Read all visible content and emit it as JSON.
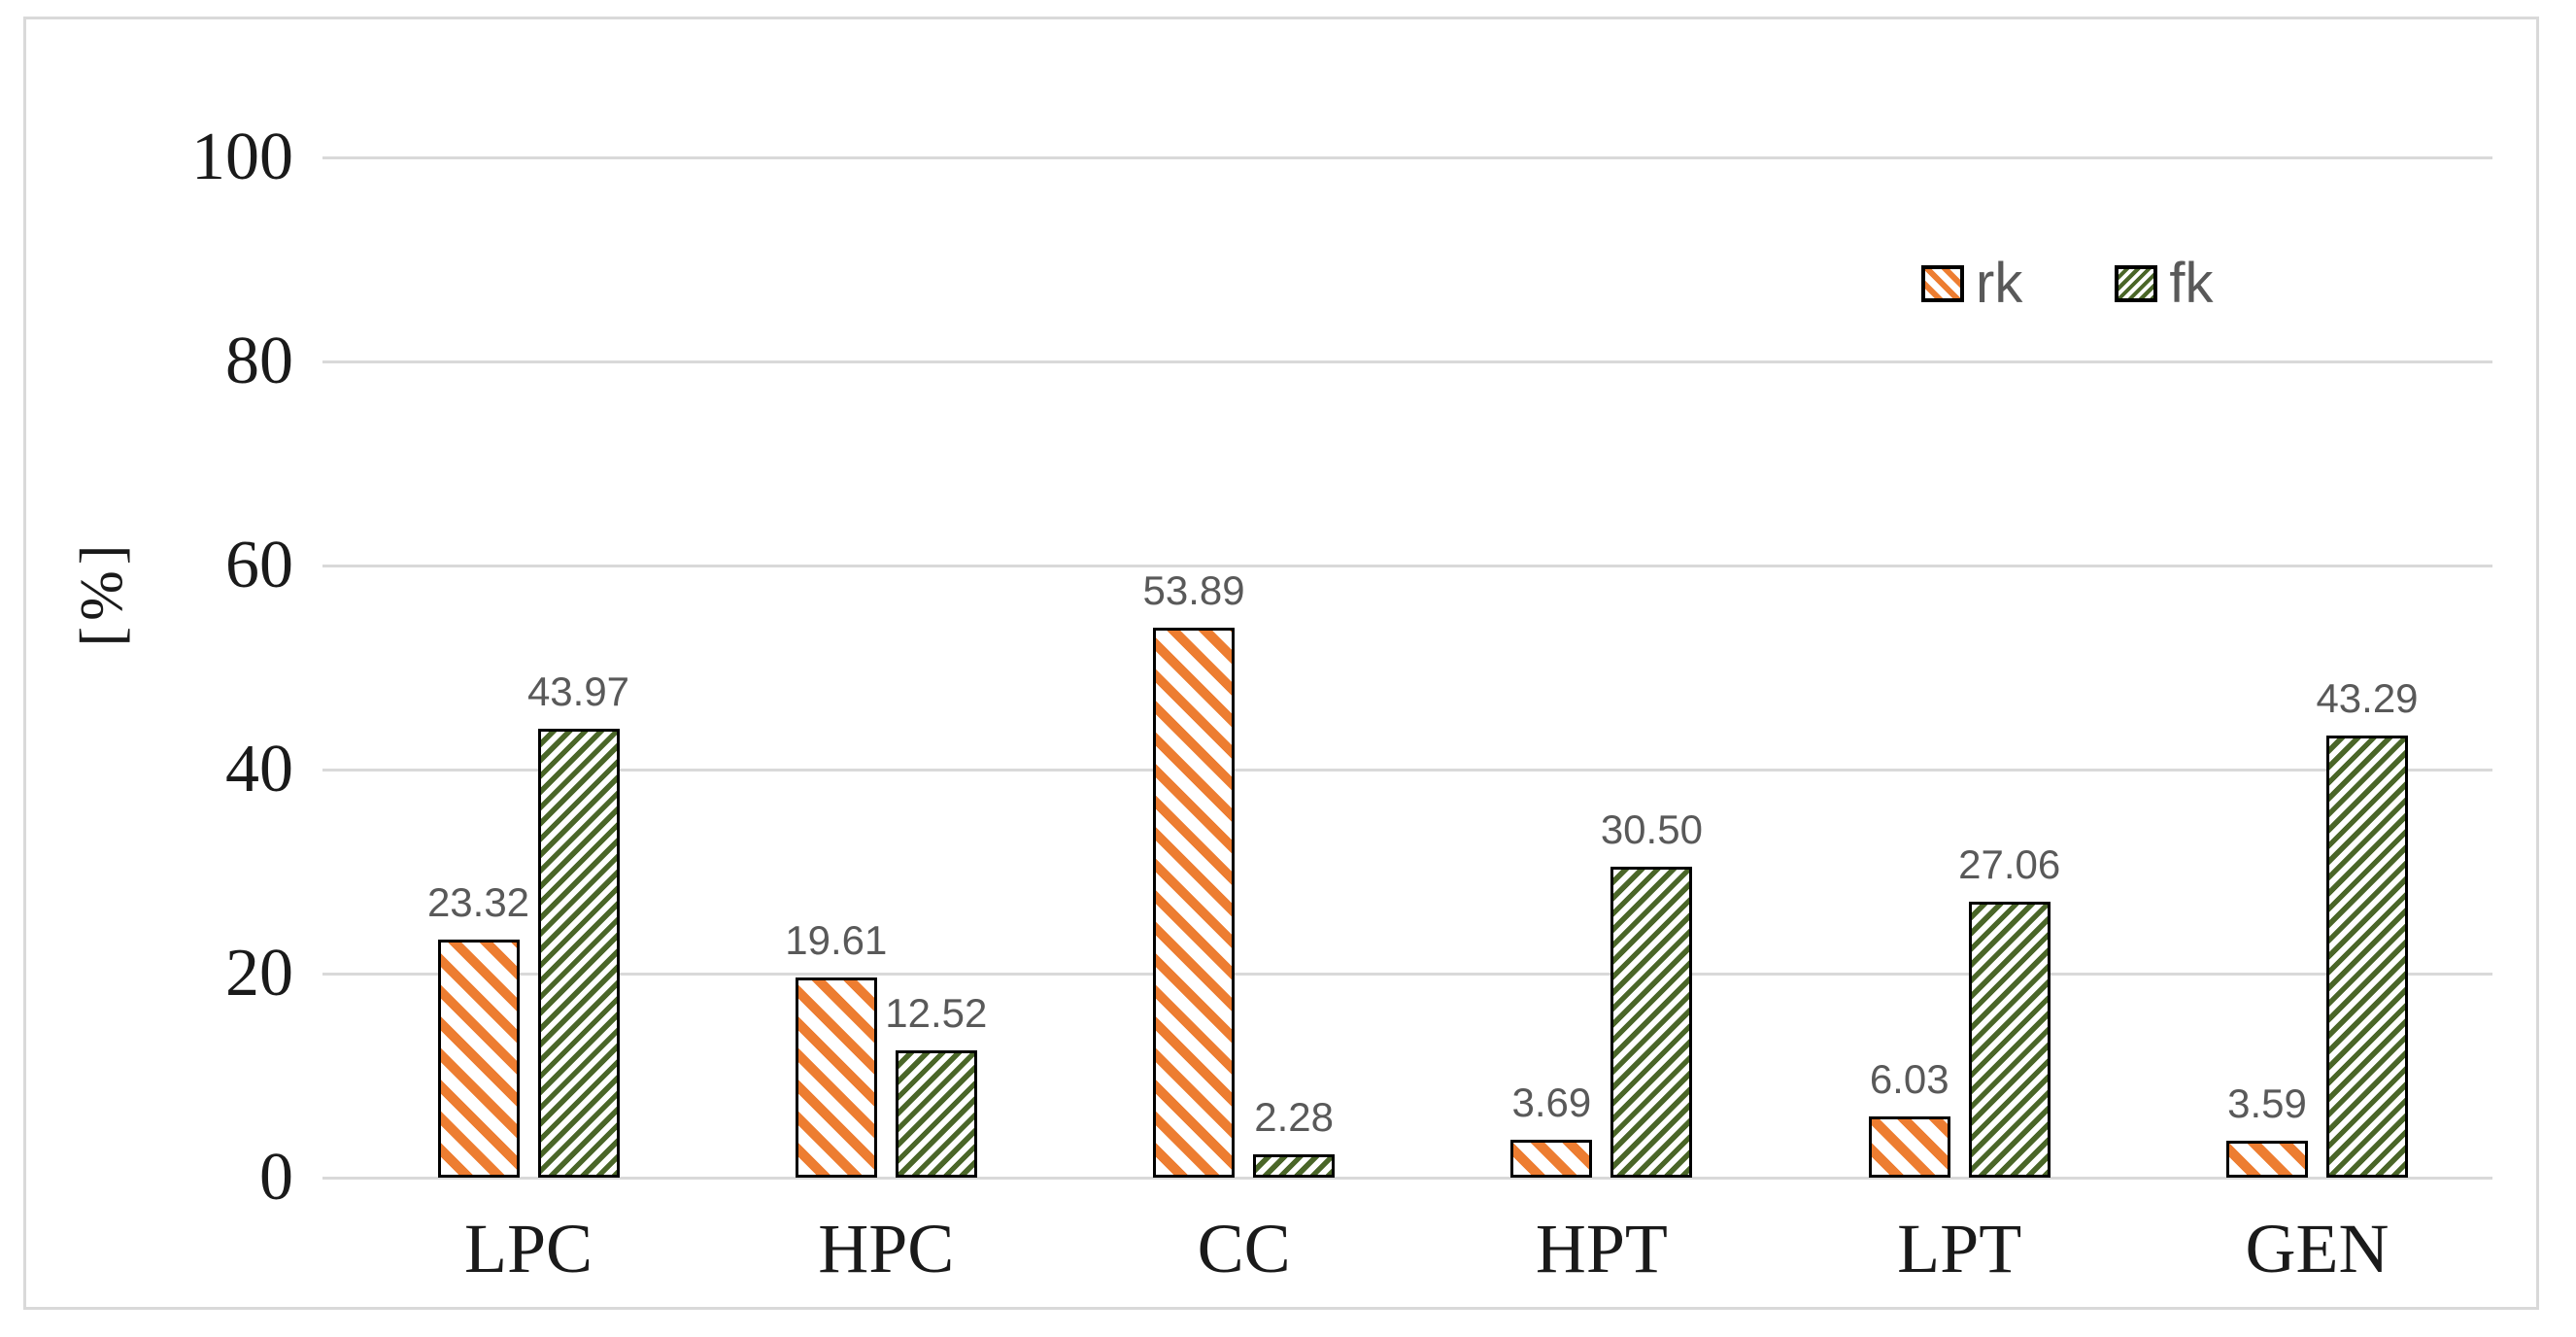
{
  "chart_data": {
    "type": "bar",
    "title": "",
    "categories": [
      "LPC",
      "HPC",
      "CC",
      "HPT",
      "LPT",
      "GEN"
    ],
    "series": [
      {
        "name": "rk",
        "values": [
          23.32,
          19.61,
          53.89,
          3.69,
          6.03,
          3.59
        ],
        "labels": [
          "23.32",
          "19.61",
          "53.89",
          "3.69",
          "6.03",
          "3.59"
        ],
        "color": "#ED7D31",
        "hatch": "wide-downward-diagonal"
      },
      {
        "name": "fk",
        "values": [
          43.97,
          12.52,
          2.28,
          30.5,
          27.06,
          43.29
        ],
        "labels": [
          "43.97",
          "12.52",
          "2.28",
          "30.50",
          "27.06",
          "43.29"
        ],
        "color": "#4A6628",
        "hatch": "upward-diagonal"
      }
    ],
    "xlabel": "",
    "ylabel": "[%]",
    "ylim": [
      0,
      100
    ],
    "yticks": [
      0,
      20,
      40,
      60,
      80,
      100
    ],
    "grid": true,
    "legend_position": "top-right",
    "colors": {
      "gridline": "#d9d9d9",
      "frame": "#d9d9d9",
      "bar_border": "#000000",
      "data_label_text": "#595959",
      "legend_text": "#595959",
      "axis_text": "#1a1a1a",
      "background": "#ffffff"
    }
  }
}
